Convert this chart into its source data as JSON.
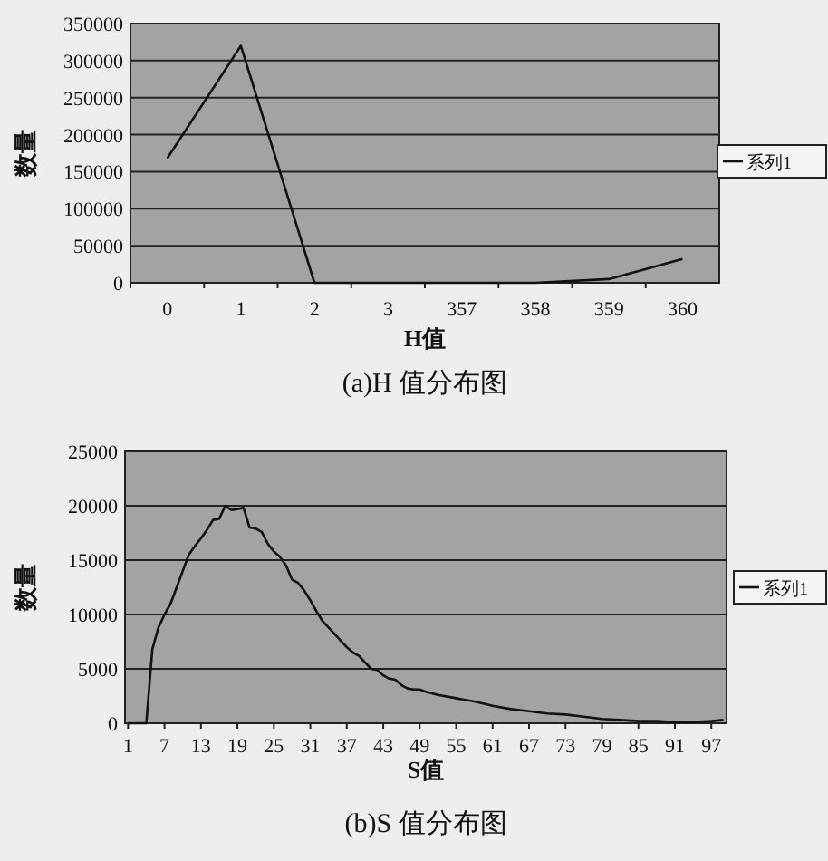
{
  "chart_data": [
    {
      "type": "line",
      "categories": [
        "0",
        "1",
        "2",
        "3",
        "357",
        "358",
        "359",
        "360"
      ],
      "series": [
        {
          "name": "系列1",
          "color": "#111111",
          "values": [
            168000,
            320000,
            0,
            0,
            0,
            0,
            5000,
            32000
          ]
        }
      ],
      "ylim": [
        0,
        350000
      ],
      "yticks": [
        0,
        50000,
        100000,
        150000,
        200000,
        250000,
        300000,
        350000
      ],
      "xlabel": "H值",
      "ylabel": "数量",
      "annotations": [
        "(a)H 值分布图"
      ],
      "grid": "y",
      "legend": "right"
    },
    {
      "type": "line",
      "x": [
        1,
        2,
        3,
        4,
        5,
        6,
        7,
        8,
        9,
        10,
        11,
        12,
        13,
        14,
        15,
        16,
        17,
        18,
        19,
        20,
        21,
        22,
        23,
        24,
        25,
        26,
        27,
        28,
        29,
        30,
        31,
        32,
        33,
        34,
        35,
        36,
        37,
        38,
        39,
        40,
        41,
        42,
        43,
        44,
        45,
        46,
        47,
        48,
        49,
        50,
        52,
        55,
        58,
        61,
        64,
        67,
        70,
        73,
        76,
        79,
        82,
        85,
        88,
        91,
        94,
        97,
        99
      ],
      "series": [
        {
          "name": "系列1",
          "color": "#111111",
          "values": [
            0,
            0,
            0,
            0,
            6800,
            8800,
            10000,
            11000,
            12500,
            14000,
            15500,
            16300,
            17000,
            17800,
            18700,
            18800,
            20000,
            19600,
            19700,
            19800,
            18000,
            17900,
            17600,
            16500,
            15800,
            15300,
            14500,
            13200,
            12900,
            12200,
            11300,
            10300,
            9400,
            8800,
            8200,
            7600,
            7000,
            6500,
            6200,
            5600,
            5000,
            4900,
            4400,
            4100,
            4000,
            3500,
            3200,
            3100,
            3100,
            2900,
            2600,
            2300,
            2000,
            1600,
            1300,
            1100,
            900,
            800,
            600,
            400,
            300,
            200,
            200,
            100,
            100,
            200,
            300
          ]
        }
      ],
      "xlim": [
        0.5,
        99.5
      ],
      "xticks": [
        1,
        7,
        13,
        19,
        25,
        31,
        37,
        43,
        49,
        55,
        61,
        67,
        73,
        79,
        85,
        91,
        97
      ],
      "ylim": [
        0,
        25000
      ],
      "yticks": [
        0,
        5000,
        10000,
        15000,
        20000,
        25000
      ],
      "xlabel": "S值",
      "ylabel": "数量",
      "annotations": [
        "(b)S 值分布图"
      ],
      "grid": "y",
      "legend": "right"
    }
  ]
}
